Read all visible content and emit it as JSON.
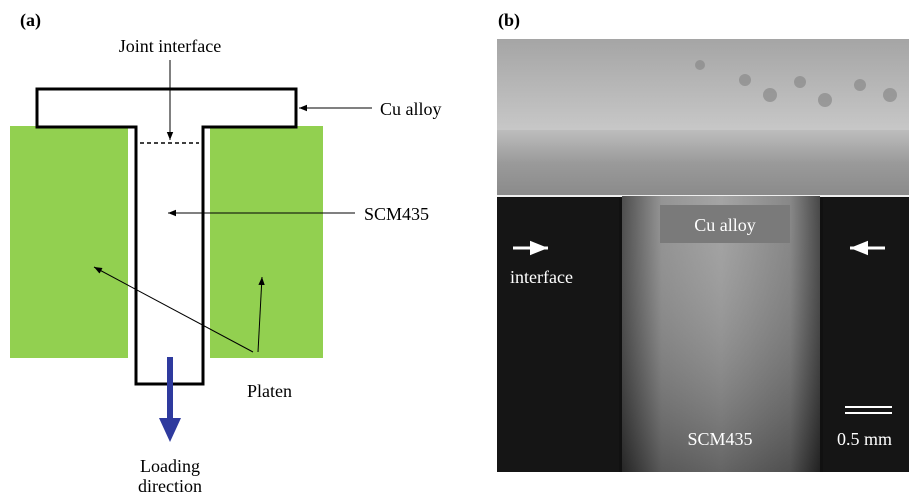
{
  "panel_a": {
    "label": "(a)",
    "joint_interface": "Joint interface",
    "cu_alloy": "Cu alloy",
    "scm435": "SCM435",
    "platen": "Platen",
    "loading": "Loading",
    "direction": "direction"
  },
  "panel_b": {
    "label": "(b)",
    "cu_alloy": "Cu alloy",
    "interface": "interface",
    "scm435": "SCM435",
    "scale": "0.5 mm"
  }
}
